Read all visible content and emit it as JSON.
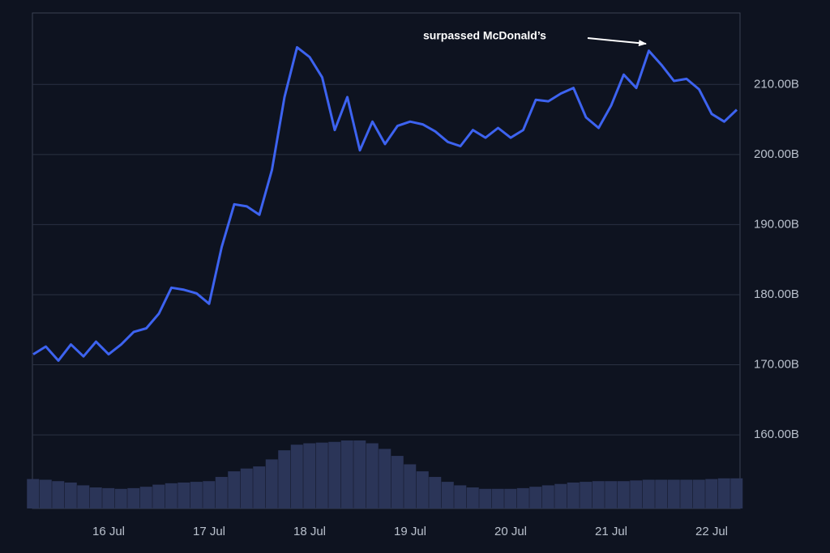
{
  "chart_data": {
    "type": "line",
    "categories": [
      null,
      null,
      null,
      null,
      null,
      null,
      "16 Jul",
      null,
      null,
      null,
      null,
      null,
      null,
      null,
      "17 Jul",
      null,
      null,
      null,
      null,
      null,
      null,
      null,
      "18 Jul",
      null,
      null,
      null,
      null,
      null,
      null,
      null,
      "19 Jul",
      null,
      null,
      null,
      null,
      null,
      null,
      null,
      "20 Jul",
      null,
      null,
      null,
      null,
      null,
      null,
      null,
      "21 Jul",
      null,
      null,
      null,
      null,
      null,
      null,
      null,
      "22 Jul",
      null,
      null
    ],
    "series": [
      {
        "color": "#3d63f0",
        "values": [
          171.5,
          172.6,
          170.6,
          172.9,
          171.2,
          173.3,
          171.5,
          172.9,
          174.7,
          175.2,
          177.3,
          181.0,
          180.7,
          180.2,
          178.7,
          186.8,
          192.9,
          192.6,
          191.4,
          197.8,
          208.2,
          215.3,
          213.9,
          211.0,
          203.5,
          208.2,
          200.6,
          204.7,
          201.5,
          204.1,
          204.7,
          204.3,
          203.3,
          201.8,
          201.2,
          203.5,
          202.4,
          203.8,
          202.4,
          203.5,
          207.8,
          207.6,
          208.7,
          209.5,
          205.3,
          203.8,
          207.0,
          211.4,
          209.5,
          214.8,
          212.8,
          210.5,
          210.8,
          209.3,
          205.8,
          204.7,
          206.4
        ]
      },
      {
        "color": "#2b3558",
        "style": "bars",
        "values": [
          153.7,
          153.6,
          153.4,
          153.2,
          152.8,
          152.5,
          152.4,
          152.3,
          152.4,
          152.6,
          152.9,
          153.1,
          153.2,
          153.3,
          153.4,
          154.0,
          154.8,
          155.2,
          155.5,
          156.5,
          157.8,
          158.6,
          158.8,
          158.9,
          159.0,
          159.2,
          159.2,
          158.8,
          158.0,
          157.0,
          155.8,
          154.8,
          154.0,
          153.3,
          152.8,
          152.5,
          152.3,
          152.3,
          152.3,
          152.4,
          152.6,
          152.8,
          153.0,
          153.2,
          153.3,
          153.4,
          153.4,
          153.4,
          153.5,
          153.6,
          153.6,
          153.6,
          153.6,
          153.6,
          153.7,
          153.8,
          153.8
        ]
      }
    ],
    "ylim": [
      149.5,
      220.2
    ],
    "yticks": [
      {
        "value": 160,
        "label": "160.00B"
      },
      {
        "value": 170,
        "label": "170.00B"
      },
      {
        "value": 180,
        "label": "180.00B"
      },
      {
        "value": 190,
        "label": "190.00B"
      },
      {
        "value": 200,
        "label": "200.00B"
      },
      {
        "value": 210,
        "label": "210.00B"
      }
    ],
    "grid": true,
    "annotations": [
      {
        "text": "surpassed McDonald’s"
      }
    ]
  }
}
